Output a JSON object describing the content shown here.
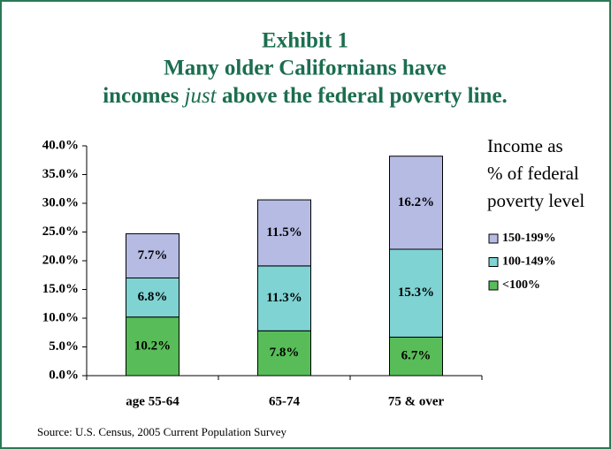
{
  "chart_data": {
    "type": "stacked_bar",
    "title": [
      "Exhibit 1",
      "Many older Californians have",
      [
        "incomes ",
        "just",
        " above the federal poverty line."
      ]
    ],
    "legend_title": [
      "Income as",
      "% of federal",
      "poverty level"
    ],
    "annotation": "Source: U.S. Census, 2005 Current Population Survey",
    "categories": [
      "age 55-64",
      "65-74",
      "75 & over"
    ],
    "series": [
      {
        "name": "<100%",
        "color": "#58bd58",
        "values": [
          10.2,
          7.8,
          6.7
        ],
        "value_labels": [
          "10.2%",
          "7.8%",
          "6.7%"
        ]
      },
      {
        "name": "100-149%",
        "color": "#7fd3d3",
        "values": [
          6.8,
          11.3,
          15.3
        ],
        "value_labels": [
          "6.8%",
          "11.3%",
          "15.3%"
        ]
      },
      {
        "name": "150-199%",
        "color": "#b6bbe3",
        "values": [
          7.7,
          11.5,
          16.2
        ],
        "value_labels": [
          "7.7%",
          "11.5%",
          "16.2%"
        ]
      }
    ],
    "ylim": [
      0,
      40
    ],
    "yticks": [
      {
        "value": 0,
        "label": "0.0%"
      },
      {
        "value": 5,
        "label": "5.0%"
      },
      {
        "value": 10,
        "label": "10.0%"
      },
      {
        "value": 15,
        "label": "15.0%"
      },
      {
        "value": 20,
        "label": "20.0%"
      },
      {
        "value": 25,
        "label": "25.0%"
      },
      {
        "value": 30,
        "label": "30.0%"
      },
      {
        "value": 35,
        "label": "35.0%"
      },
      {
        "value": 40,
        "label": "40.0%"
      }
    ],
    "legend": "right"
  }
}
